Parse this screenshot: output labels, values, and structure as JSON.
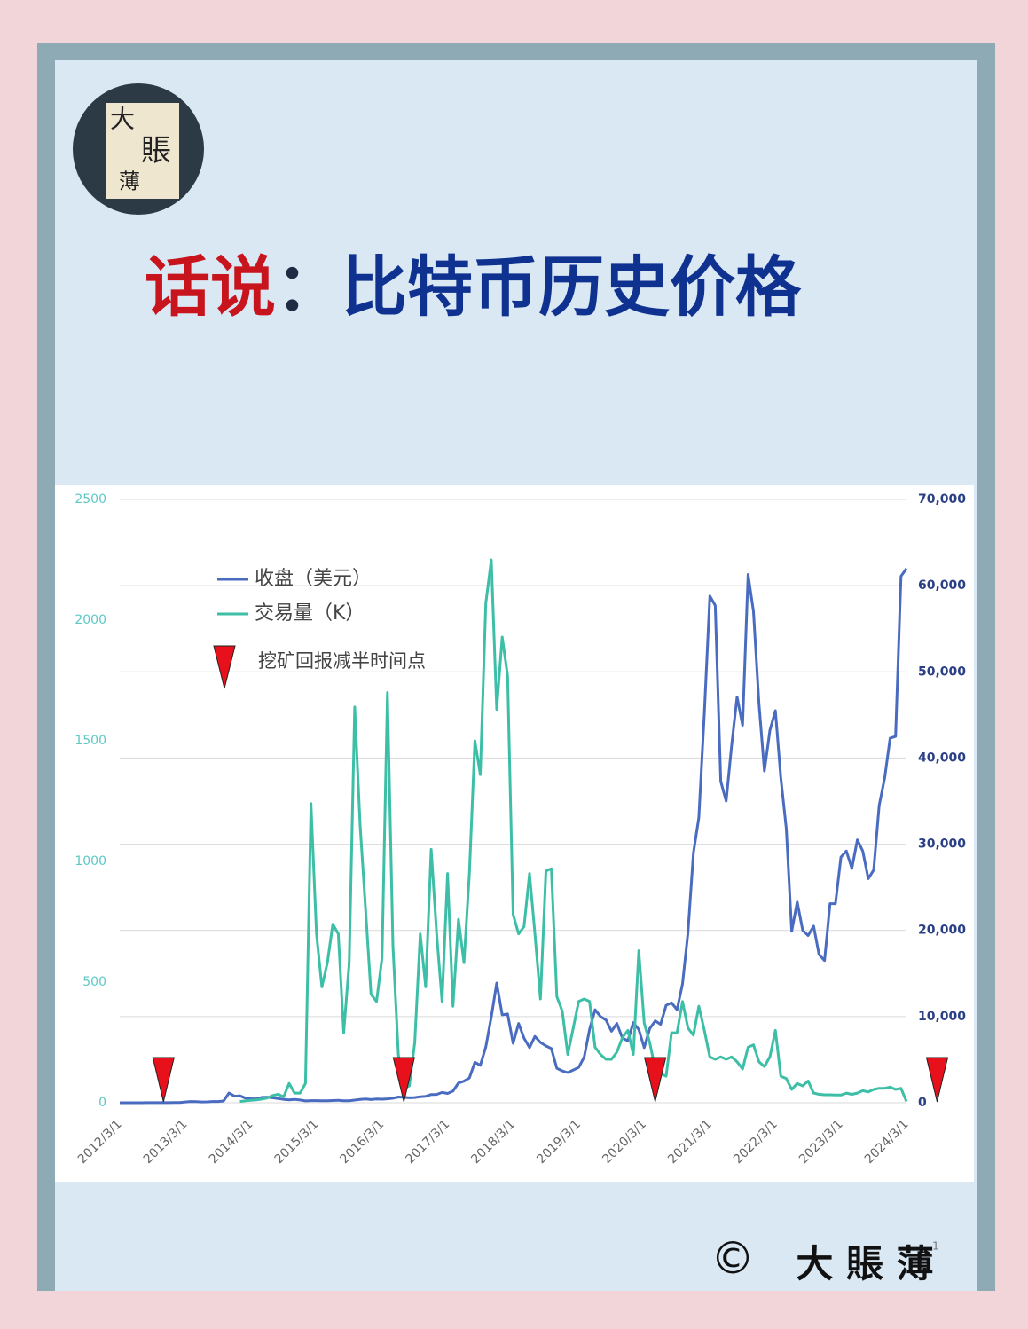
{
  "header": {
    "logo": [
      "大",
      "賬",
      "薄"
    ],
    "title_prefix": "话说",
    "title_separator": "：",
    "title_main": "比特币历史价格"
  },
  "chart_data": {
    "type": "line",
    "categories": [
      "2012/3/1",
      null,
      null,
      null,
      null,
      null,
      null,
      null,
      null,
      null,
      null,
      null,
      "2013/3/1",
      null,
      null,
      null,
      null,
      null,
      null,
      null,
      null,
      null,
      null,
      null,
      "2014/3/1",
      null,
      null,
      null,
      null,
      null,
      null,
      null,
      null,
      null,
      null,
      null,
      "2015/3/1",
      null,
      null,
      null,
      null,
      null,
      null,
      null,
      null,
      null,
      null,
      null,
      "2016/3/1",
      null,
      null,
      null,
      null,
      null,
      null,
      null,
      null,
      null,
      null,
      null,
      "2017/3/1",
      null,
      null,
      null,
      null,
      null,
      null,
      null,
      null,
      null,
      null,
      null,
      "2018/3/1",
      null,
      null,
      null,
      null,
      null,
      null,
      null,
      null,
      null,
      null,
      null,
      "2019/3/1",
      null,
      null,
      null,
      null,
      null,
      null,
      null,
      null,
      null,
      null,
      null,
      "2020/3/1",
      null,
      null,
      null,
      null,
      null,
      null,
      null,
      null,
      null,
      null,
      null,
      "2021/3/1",
      null,
      null,
      null,
      null,
      null,
      null,
      null,
      null,
      null,
      null,
      null,
      "2022/3/1",
      null,
      null,
      null,
      null,
      null,
      null,
      null,
      null,
      null,
      null,
      null,
      "2023/3/1",
      null,
      null,
      null,
      null,
      null,
      null,
      null,
      null,
      null,
      null,
      null,
      "2024/3/1"
    ],
    "series": [
      {
        "name": "收盘（美元）",
        "color": "#4a6cc0",
        "axis": "y2",
        "values": [
          5,
          5,
          5,
          5,
          5,
          7,
          9,
          10,
          12,
          11,
          20,
          33,
          93,
          139,
          129,
          97,
          106,
          141,
          141,
          204,
          1130,
          757,
          800,
          550,
          450,
          450,
          630,
          640,
          580,
          480,
          390,
          340,
          380,
          320,
          220,
          250,
          245,
          235,
          230,
          260,
          285,
          230,
          235,
          310,
          380,
          430,
          370,
          440,
          415,
          450,
          530,
          670,
          625,
          575,
          610,
          700,
          740,
          960,
          970,
          1190,
          1080,
          1350,
          2300,
          2500,
          2880,
          4700,
          4340,
          6470,
          9950,
          13900,
          10200,
          10300,
          6900,
          9200,
          7500,
          6400,
          7700,
          7000,
          6600,
          6300,
          4000,
          3700,
          3500,
          3800,
          4100,
          5300,
          8500,
          10800,
          10000,
          9600,
          8300,
          9200,
          7500,
          7200,
          9300,
          8500,
          6400,
          8600,
          9500,
          9100,
          11300,
          11600,
          10800,
          13800,
          19700,
          29000,
          33100,
          45200,
          58800,
          57700,
          37300,
          35000,
          41500,
          47100,
          43800,
          61300,
          57000,
          46300,
          38500,
          43200,
          45500,
          37700,
          31800,
          19900,
          23300,
          20000,
          19400,
          20500,
          17200,
          16500,
          23100,
          23100,
          28500,
          29200,
          27200,
          30500,
          29200,
          26000,
          27000,
          34500,
          37700,
          42300,
          42500,
          61100,
          62000
        ]
      },
      {
        "name": "交易量（K）",
        "color": "#3cbfa6",
        "axis": "y",
        "values": [
          null,
          null,
          null,
          null,
          null,
          null,
          null,
          null,
          null,
          null,
          null,
          null,
          null,
          null,
          null,
          null,
          null,
          null,
          null,
          null,
          null,
          null,
          5,
          8,
          10,
          12,
          15,
          20,
          30,
          35,
          25,
          80,
          40,
          40,
          80,
          1240,
          700,
          480,
          580,
          740,
          700,
          290,
          580,
          1640,
          1150,
          800,
          450,
          420,
          600,
          1700,
          650,
          200,
          60,
          70,
          250,
          700,
          480,
          1050,
          700,
          420,
          950,
          400,
          760,
          580,
          950,
          1500,
          1360,
          2070,
          2250,
          1630,
          1930,
          1770,
          780,
          700,
          730,
          950,
          700,
          430,
          960,
          970,
          440,
          380,
          200,
          310,
          420,
          430,
          420,
          230,
          200,
          180,
          180,
          210,
          270,
          300,
          200,
          630,
          330,
          250,
          140,
          120,
          110,
          290,
          290,
          420,
          310,
          280,
          400,
          300,
          190,
          180,
          190,
          180,
          190,
          170,
          140,
          230,
          240,
          170,
          150,
          190,
          300,
          110,
          100,
          55,
          80,
          70,
          90,
          40,
          35,
          33,
          33,
          32,
          32,
          40,
          35,
          40,
          50,
          45,
          55,
          60,
          60,
          65,
          55,
          60,
          5
        ]
      }
    ],
    "halving_label": "挖矿回报减半时间点",
    "halving_color": "#e8101a",
    "ylim": [
      0,
      2500
    ],
    "yticks": [
      0,
      500,
      1000,
      1500,
      2000,
      2500
    ],
    "y2lim": [
      0,
      70000
    ],
    "y2ticks": [
      0,
      {
        "value": 10000,
        "label": "10,000"
      },
      {
        "value": 20000,
        "label": "20,000"
      },
      {
        "value": 30000,
        "label": "30,000"
      },
      {
        "value": 40000,
        "label": "40,000"
      },
      {
        "value": 50000,
        "label": "50,000"
      },
      {
        "value": 60000,
        "label": "60,000"
      },
      {
        "value": 70000,
        "label": "70,000"
      }
    ],
    "grid": "y2"
  },
  "footer": {
    "copyright": "©",
    "brand": "大 賬 薄",
    "page": "1"
  }
}
